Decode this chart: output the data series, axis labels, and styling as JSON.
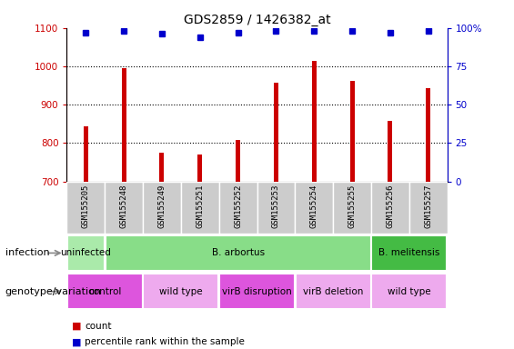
{
  "title": "GDS2859 / 1426382_at",
  "samples": [
    "GSM155205",
    "GSM155248",
    "GSM155249",
    "GSM155251",
    "GSM155252",
    "GSM155253",
    "GSM155254",
    "GSM155255",
    "GSM155256",
    "GSM155257"
  ],
  "counts": [
    843,
    994,
    775,
    770,
    808,
    958,
    1013,
    963,
    858,
    942
  ],
  "percentile_ranks": [
    97,
    98,
    96,
    94,
    97,
    98,
    98,
    98,
    97,
    98
  ],
  "ylim_left": [
    700,
    1100
  ],
  "ylim_right": [
    0,
    100
  ],
  "right_ticks": [
    0,
    25,
    50,
    75,
    100
  ],
  "right_tick_labels": [
    "0",
    "25",
    "50",
    "75",
    "100%"
  ],
  "left_ticks": [
    700,
    800,
    900,
    1000,
    1100
  ],
  "dotted_lines": [
    800,
    900,
    1000
  ],
  "bar_color": "#cc0000",
  "marker_color": "#0000cc",
  "infection_labels": [
    {
      "text": "uninfected",
      "start": 0,
      "end": 1,
      "color": "#aaeaaa"
    },
    {
      "text": "B. arbortus",
      "start": 1,
      "end": 8,
      "color": "#88dd88"
    },
    {
      "text": "B. melitensis",
      "start": 8,
      "end": 10,
      "color": "#44bb44"
    }
  ],
  "genotype_labels": [
    {
      "text": "control",
      "start": 0,
      "end": 2,
      "color": "#dd55dd"
    },
    {
      "text": "wild type",
      "start": 2,
      "end": 4,
      "color": "#eeaaee"
    },
    {
      "text": "virB disruption",
      "start": 4,
      "end": 6,
      "color": "#dd55dd"
    },
    {
      "text": "virB deletion",
      "start": 6,
      "end": 8,
      "color": "#eeaaee"
    },
    {
      "text": "wild type",
      "start": 8,
      "end": 10,
      "color": "#eeaaee"
    }
  ],
  "label_row_infection": "infection",
  "label_row_genotype": "genotype/variation",
  "legend_count_label": "count",
  "legend_pct_label": "percentile rank within the sample",
  "background_color": "#ffffff",
  "tick_label_color_left": "#cc0000",
  "tick_label_color_right": "#0000cc",
  "header_bg": "#cccccc",
  "fig_width": 5.65,
  "fig_height": 3.84,
  "bar_width": 0.12
}
